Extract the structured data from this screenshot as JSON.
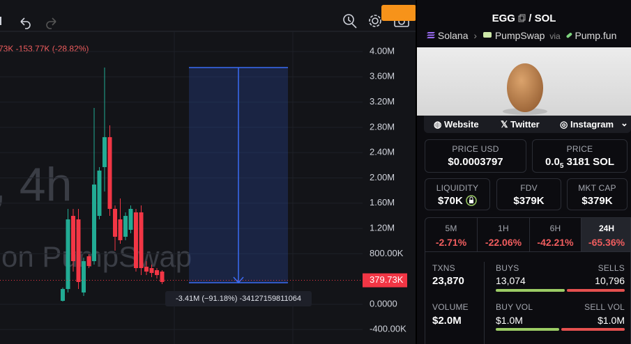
{
  "toolbar": {
    "legend": "73K -153.77K (-28.82%)"
  },
  "watermark": {
    "line1": ", 4h",
    "line2": "on PumpSwap"
  },
  "chart": {
    "type": "candlestick",
    "ylim": [
      -628000,
      4815000
    ],
    "yticks": [
      {
        "value": 4000000,
        "label": "4.00M"
      },
      {
        "value": 3600000,
        "label": "3.60M"
      },
      {
        "value": 3200000,
        "label": "3.20M"
      },
      {
        "value": 2800000,
        "label": "2.80M"
      },
      {
        "value": 2400000,
        "label": "2.40M"
      },
      {
        "value": 2000000,
        "label": "2.00M"
      },
      {
        "value": 1600000,
        "label": "1.60M"
      },
      {
        "value": 1200000,
        "label": "1.20M"
      },
      {
        "value": 800000,
        "label": "800.00K"
      },
      {
        "value": 0,
        "label": "0.0000"
      },
      {
        "value": -400000,
        "label": "-400.00K"
      }
    ],
    "grid": true,
    "up_color": "#22ab94",
    "down_color": "#f23645",
    "candles": {
      "open": [
        55000,
        242000,
        1399000,
        1344000,
        187000,
        760000,
        683000,
        1399000,
        2171000,
        2645000,
        1510000,
        1344000,
        1069000,
        1179000,
        1455000,
        1455000,
        595000,
        573000,
        540000,
        518000
      ],
      "high": [
        264000,
        1510000,
        1510000,
        1510000,
        738000,
        793000,
        3107000,
        2171000,
        3746000,
        2832000,
        1565000,
        1675000,
        1455000,
        1565000,
        1510000,
        1565000,
        683000,
        628000,
        573000,
        540000
      ],
      "low": [
        44000,
        187000,
        518000,
        242000,
        132000,
        573000,
        628000,
        1344000,
        1785000,
        1399000,
        848000,
        959000,
        1014000,
        1124000,
        518000,
        463000,
        463000,
        430000,
        408000,
        320000
      ],
      "close": [
        242000,
        1344000,
        683000,
        353000,
        683000,
        606000,
        1895000,
        2116000,
        2645000,
        1510000,
        1069000,
        1014000,
        1399000,
        1510000,
        573000,
        573000,
        518000,
        496000,
        463000,
        353000
      ]
    },
    "last_price": {
      "value": 379730,
      "label": "379.73K"
    },
    "measure": {
      "label": "-3.41M (−91.18%) -34127159811064"
    }
  },
  "pair": {
    "base": "EGG",
    "separator": "/",
    "quote": "SOL",
    "chain": "Solana",
    "dex": "PumpSwap",
    "via": "via",
    "launchpad": "Pump.fun"
  },
  "links": [
    "Website",
    "Twitter",
    "Instagram"
  ],
  "price_usd": {
    "label": "PRICE USD",
    "value": "$0.0003797"
  },
  "price_native": {
    "label": "PRICE",
    "lead": "0.0",
    "zeros": "5",
    "value": "3181 SOL"
  },
  "liquidity": {
    "label": "LIQUIDITY",
    "value": "$70K"
  },
  "fdv": {
    "label": "FDV",
    "value": "$379K"
  },
  "mkt_cap": {
    "label": "MKT CAP",
    "value": "$379K"
  },
  "timeframes": [
    {
      "label": "5M",
      "change": "-2.71%"
    },
    {
      "label": "1H",
      "change": "-22.06%"
    },
    {
      "label": "6H",
      "change": "-42.21%"
    },
    {
      "label": "24H",
      "change": "-65.36%"
    }
  ],
  "txns": {
    "label": "TXNS",
    "value": "23,870",
    "buys_label": "BUYS",
    "buys": "13,074",
    "sells_label": "SELLS",
    "sells": "10,796"
  },
  "volume": {
    "label": "VOLUME",
    "value": "$2.0M",
    "buy_label": "BUY VOL",
    "buy": "$1.0M",
    "sell_label": "SELL VOL",
    "sell": "$1.0M"
  }
}
